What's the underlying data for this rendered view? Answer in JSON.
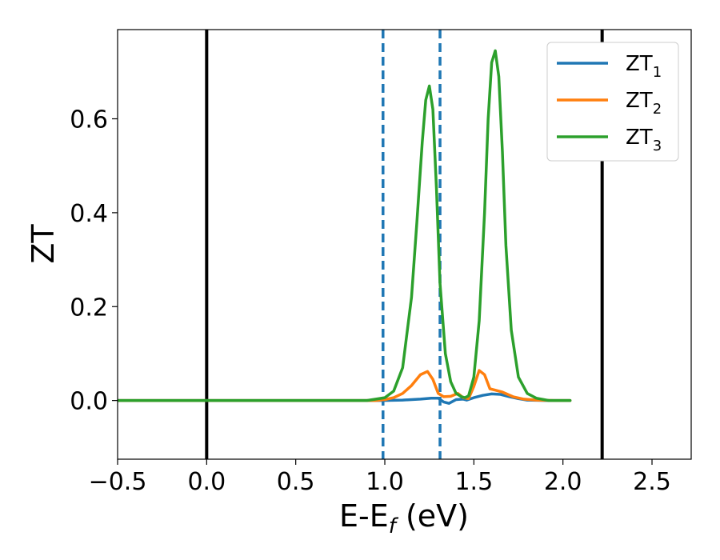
{
  "chart_data": {
    "type": "line",
    "xlabel": "E-E",
    "xlabel_subscript": "f",
    "xlabel_unit": " (eV)",
    "ylabel": "ZT",
    "xlim": [
      -0.5,
      2.72
    ],
    "ylim": [
      -0.125,
      0.79
    ],
    "x_ticks": [
      -0.5,
      0.0,
      0.5,
      1.0,
      1.5,
      2.0,
      2.5
    ],
    "x_tick_labels": [
      "−0.5",
      "0.0",
      "0.5",
      "1.0",
      "1.5",
      "2.0",
      "2.5"
    ],
    "y_ticks": [
      0.0,
      0.2,
      0.4,
      0.6
    ],
    "y_tick_labels": [
      "0.0",
      "0.2",
      "0.4",
      "0.6"
    ],
    "grid": false,
    "legend_position": "top-right",
    "vertical_lines": [
      {
        "x": 0.0,
        "color": "#000000",
        "style": "solid"
      },
      {
        "x": 2.22,
        "color": "#000000",
        "style": "solid"
      },
      {
        "x": 0.99,
        "color": "#1f77b4",
        "style": "dashed"
      },
      {
        "x": 1.31,
        "color": "#1f77b4",
        "style": "dashed"
      }
    ],
    "series": [
      {
        "name": "ZT",
        "name_subscript": "1",
        "color": "#1f77b4",
        "x": [
          -0.5,
          0.5,
          0.99,
          1.1,
          1.2,
          1.26,
          1.3,
          1.33,
          1.36,
          1.4,
          1.44,
          1.46,
          1.5,
          1.55,
          1.6,
          1.65,
          1.7,
          1.75,
          1.8,
          1.9,
          2.04
        ],
        "y": [
          0.0,
          0.0,
          0.0,
          0.001,
          0.003,
          0.005,
          0.005,
          -0.003,
          -0.006,
          0.002,
          0.003,
          0.001,
          0.006,
          0.011,
          0.014,
          0.013,
          0.008,
          0.004,
          0.001,
          0.0,
          0.0
        ]
      },
      {
        "name": "ZT",
        "name_subscript": "2",
        "color": "#ff7f0e",
        "x": [
          -0.5,
          0.5,
          0.95,
          1.0,
          1.05,
          1.1,
          1.15,
          1.2,
          1.24,
          1.27,
          1.3,
          1.33,
          1.37,
          1.41,
          1.44,
          1.47,
          1.5,
          1.53,
          1.56,
          1.59,
          1.62,
          1.66,
          1.72,
          1.78,
          1.85,
          1.95,
          2.04
        ],
        "y": [
          0.0,
          0.0,
          0.0,
          0.002,
          0.006,
          0.015,
          0.032,
          0.055,
          0.062,
          0.045,
          0.015,
          0.008,
          0.009,
          0.015,
          0.006,
          0.004,
          0.03,
          0.064,
          0.055,
          0.025,
          0.022,
          0.018,
          0.008,
          0.003,
          0.001,
          0.0,
          0.0
        ]
      },
      {
        "name": "ZT",
        "name_subscript": "3",
        "color": "#2ca02c",
        "x": [
          -0.5,
          0.5,
          0.9,
          1.0,
          1.05,
          1.1,
          1.15,
          1.18,
          1.21,
          1.23,
          1.25,
          1.27,
          1.29,
          1.31,
          1.34,
          1.37,
          1.4,
          1.43,
          1.45,
          1.47,
          1.5,
          1.53,
          1.56,
          1.58,
          1.6,
          1.62,
          1.64,
          1.66,
          1.68,
          1.71,
          1.75,
          1.8,
          1.85,
          1.92,
          2.04
        ],
        "y": [
          0.0,
          0.0,
          0.0,
          0.006,
          0.02,
          0.07,
          0.22,
          0.38,
          0.55,
          0.64,
          0.67,
          0.62,
          0.45,
          0.25,
          0.1,
          0.04,
          0.015,
          0.008,
          0.006,
          0.01,
          0.05,
          0.17,
          0.4,
          0.6,
          0.72,
          0.745,
          0.69,
          0.53,
          0.33,
          0.15,
          0.05,
          0.015,
          0.005,
          0.0,
          0.0
        ]
      }
    ]
  }
}
